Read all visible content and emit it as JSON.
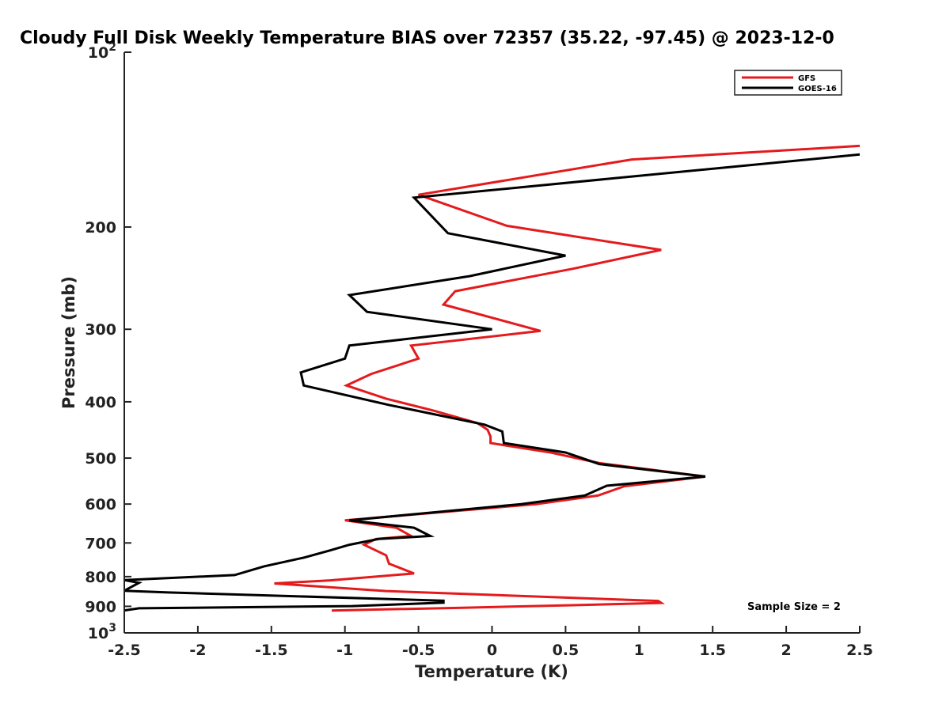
{
  "chart_data": {
    "type": "line",
    "title": "Cloudy Full Disk Weekly Temperature BIAS over 72357 (35.22, -97.45) @ 2023-12-0",
    "xlabel": "Temperature (K)",
    "ylabel": "Pressure (mb)",
    "xlim": [
      -2.5,
      2.5
    ],
    "ylim": [
      100,
      1000
    ],
    "y_scale": "log",
    "y_reversed": true,
    "x_ticks": [
      "-2.5",
      "-2",
      "-1.5",
      "-1",
      "-0.5",
      "0",
      "0.5",
      "1",
      "1.5",
      "2",
      "2.5"
    ],
    "y_ticks": [
      {
        "value": 100,
        "base": "10",
        "exp": "2"
      },
      {
        "value": 200,
        "label": "200"
      },
      {
        "value": 300,
        "label": "300"
      },
      {
        "value": 400,
        "label": "400"
      },
      {
        "value": 500,
        "label": "500"
      },
      {
        "value": 600,
        "label": "600"
      },
      {
        "value": 700,
        "label": "700"
      },
      {
        "value": 800,
        "label": "800"
      },
      {
        "value": 900,
        "label": "900"
      },
      {
        "value": 1000,
        "base": "10",
        "exp": "3"
      }
    ],
    "legend_position": "top-right",
    "annotation": "Sample Size = 2",
    "series": [
      {
        "name": "GFS",
        "color": "#e41a1c",
        "points": [
          [
            2.5,
            145
          ],
          [
            0.95,
            153
          ],
          [
            -0.5,
            176
          ],
          [
            0.1,
            199
          ],
          [
            1.15,
            219
          ],
          [
            0.55,
            236
          ],
          [
            -0.25,
            258
          ],
          [
            -0.33,
            272
          ],
          [
            0.33,
            302
          ],
          [
            -0.55,
            320
          ],
          [
            -0.5,
            337
          ],
          [
            -0.82,
            358
          ],
          [
            -0.99,
            375
          ],
          [
            -0.72,
            395
          ],
          [
            -0.4,
            414
          ],
          [
            -0.1,
            435
          ],
          [
            -0.03,
            447
          ],
          [
            -0.01,
            459
          ],
          [
            -0.01,
            471
          ],
          [
            0.4,
            489
          ],
          [
            0.73,
            510
          ],
          [
            1.45,
            538
          ],
          [
            0.9,
            559
          ],
          [
            0.72,
            580
          ],
          [
            0.3,
            600
          ],
          [
            -1.0,
            640
          ],
          [
            -0.65,
            659
          ],
          [
            -0.55,
            681
          ],
          [
            -0.79,
            689
          ],
          [
            -0.87,
            705
          ],
          [
            -0.72,
            735
          ],
          [
            -0.7,
            760
          ],
          [
            -0.53,
            790
          ],
          [
            -1.1,
            812
          ],
          [
            -1.48,
            822
          ],
          [
            -0.72,
            847
          ],
          [
            1.13,
            881
          ],
          [
            1.15,
            888
          ],
          [
            0.55,
            896
          ],
          [
            -0.2,
            905
          ],
          [
            -1.09,
            915
          ]
        ]
      },
      {
        "name": "GOES-16",
        "color": "#000000",
        "points": [
          [
            2.5,
            150
          ],
          [
            -0.53,
            178
          ],
          [
            -0.3,
            205
          ],
          [
            0.5,
            224
          ],
          [
            -0.15,
            243
          ],
          [
            -0.97,
            262
          ],
          [
            -0.85,
            280
          ],
          [
            0.0,
            300
          ],
          [
            -0.97,
            320
          ],
          [
            -1.0,
            337
          ],
          [
            -1.3,
            356
          ],
          [
            -1.28,
            375
          ],
          [
            -0.7,
            405
          ],
          [
            -0.05,
            438
          ],
          [
            0.07,
            450
          ],
          [
            0.08,
            471
          ],
          [
            0.5,
            489
          ],
          [
            0.73,
            512
          ],
          [
            1.45,
            538
          ],
          [
            0.78,
            558
          ],
          [
            0.63,
            580
          ],
          [
            0.2,
            600
          ],
          [
            -0.97,
            640
          ],
          [
            -0.53,
            659
          ],
          [
            -0.42,
            681
          ],
          [
            -0.77,
            689
          ],
          [
            -0.97,
            705
          ],
          [
            -1.1,
            721
          ],
          [
            -1.28,
            742
          ],
          [
            -1.55,
            768
          ],
          [
            -1.75,
            795
          ],
          [
            -2.5,
            811
          ],
          [
            -2.4,
            820
          ],
          [
            -2.5,
            846
          ],
          [
            -2.2,
            852
          ],
          [
            -0.33,
            880
          ],
          [
            -0.33,
            887
          ],
          [
            -0.95,
            899
          ],
          [
            -2.4,
            907
          ],
          [
            -2.5,
            915
          ]
        ]
      }
    ]
  }
}
